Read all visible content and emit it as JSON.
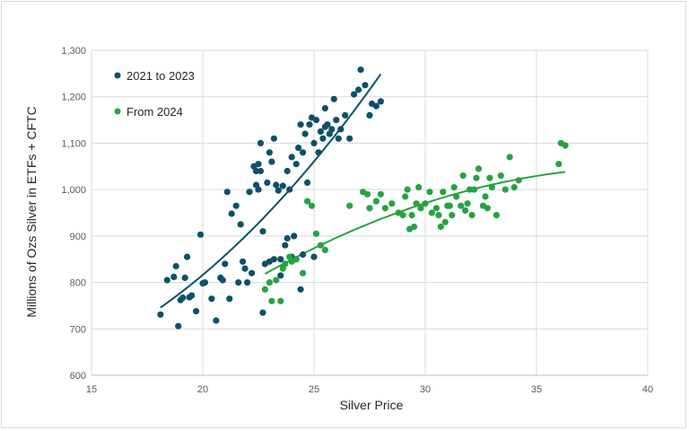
{
  "chart_data": {
    "type": "scatter",
    "title": "",
    "xlabel": "Silver Price",
    "ylabel": "Millions of Ozs Silver in ETFs + CFTC",
    "xlim": [
      15,
      40
    ],
    "ylim": [
      600,
      1300
    ],
    "x_ticks": [
      "15",
      "20",
      "25",
      "30",
      "35",
      "40"
    ],
    "y_ticks": [
      "600",
      "700",
      "800",
      "900",
      "1,000",
      "1,100",
      "1,200",
      "1,300"
    ],
    "grid": "vertical and horizontal",
    "legend_position": "top-left",
    "series": [
      {
        "name": "2021 to 2023",
        "color": "#0d5068",
        "trendline": "polynomial",
        "points": [
          [
            18.1,
            731
          ],
          [
            18.4,
            805
          ],
          [
            18.7,
            812
          ],
          [
            18.8,
            835
          ],
          [
            18.9,
            706
          ],
          [
            19.0,
            762
          ],
          [
            19.1,
            767
          ],
          [
            19.2,
            810
          ],
          [
            19.3,
            855
          ],
          [
            19.4,
            768
          ],
          [
            19.5,
            772
          ],
          [
            19.7,
            738
          ],
          [
            19.9,
            903
          ],
          [
            20.0,
            798
          ],
          [
            20.1,
            800
          ],
          [
            20.4,
            765
          ],
          [
            20.6,
            718
          ],
          [
            20.8,
            810
          ],
          [
            20.9,
            805
          ],
          [
            21.0,
            840
          ],
          [
            21.1,
            995
          ],
          [
            21.2,
            765
          ],
          [
            21.3,
            948
          ],
          [
            21.5,
            965
          ],
          [
            21.6,
            800
          ],
          [
            21.7,
            925
          ],
          [
            21.8,
            845
          ],
          [
            21.9,
            830
          ],
          [
            22.0,
            800
          ],
          [
            22.1,
            995
          ],
          [
            22.2,
            820
          ],
          [
            22.3,
            1050
          ],
          [
            22.4,
            1040
          ],
          [
            22.4,
            1010
          ],
          [
            22.5,
            1055
          ],
          [
            22.5,
            1000
          ],
          [
            22.6,
            1100
          ],
          [
            22.6,
            1040
          ],
          [
            22.7,
            735
          ],
          [
            22.7,
            910
          ],
          [
            22.8,
            840
          ],
          [
            22.9,
            1015
          ],
          [
            23.0,
            845
          ],
          [
            23.0,
            1080
          ],
          [
            23.1,
            1060
          ],
          [
            23.2,
            1110
          ],
          [
            23.2,
            850
          ],
          [
            23.3,
            1010
          ],
          [
            23.4,
            998
          ],
          [
            23.5,
            815
          ],
          [
            23.5,
            850
          ],
          [
            23.6,
            1008
          ],
          [
            23.7,
            880
          ],
          [
            23.8,
            895
          ],
          [
            23.8,
            1040
          ],
          [
            23.9,
            1000
          ],
          [
            24.0,
            855
          ],
          [
            24.0,
            1070
          ],
          [
            24.1,
            900
          ],
          [
            24.2,
            1055
          ],
          [
            24.2,
            850
          ],
          [
            24.3,
            1090
          ],
          [
            24.4,
            1140
          ],
          [
            24.4,
            785
          ],
          [
            24.5,
            860
          ],
          [
            24.5,
            1080
          ],
          [
            24.6,
            1120
          ],
          [
            24.7,
            1015
          ],
          [
            24.8,
            1140
          ],
          [
            24.9,
            1155
          ],
          [
            25.0,
            1100
          ],
          [
            25.0,
            855
          ],
          [
            25.1,
            1150
          ],
          [
            25.2,
            1080
          ],
          [
            25.3,
            1125
          ],
          [
            25.4,
            1110
          ],
          [
            25.5,
            1175
          ],
          [
            25.5,
            1135
          ],
          [
            25.6,
            1140
          ],
          [
            25.7,
            1120
          ],
          [
            25.8,
            1130
          ],
          [
            25.9,
            1195
          ],
          [
            26.0,
            1150
          ],
          [
            26.1,
            1110
          ],
          [
            26.2,
            1130
          ],
          [
            26.4,
            1160
          ],
          [
            26.6,
            1110
          ],
          [
            26.8,
            1205
          ],
          [
            27.0,
            1215
          ],
          [
            27.1,
            1258
          ],
          [
            27.3,
            1225
          ],
          [
            27.5,
            1160
          ],
          [
            27.6,
            1185
          ],
          [
            27.8,
            1180
          ],
          [
            28.0,
            1190
          ]
        ]
      },
      {
        "name": "From 2024",
        "color": "#26a242",
        "trendline": "polynomial",
        "points": [
          [
            22.8,
            785
          ],
          [
            23.0,
            800
          ],
          [
            23.1,
            760
          ],
          [
            23.3,
            805
          ],
          [
            23.5,
            760
          ],
          [
            23.6,
            830
          ],
          [
            23.7,
            840
          ],
          [
            23.9,
            855
          ],
          [
            24.0,
            845
          ],
          [
            24.2,
            850
          ],
          [
            24.5,
            820
          ],
          [
            24.7,
            975
          ],
          [
            24.9,
            965
          ],
          [
            25.1,
            905
          ],
          [
            25.3,
            880
          ],
          [
            25.5,
            870
          ],
          [
            26.6,
            965
          ],
          [
            27.2,
            995
          ],
          [
            27.4,
            990
          ],
          [
            27.5,
            960
          ],
          [
            27.8,
            975
          ],
          [
            28.0,
            990
          ],
          [
            28.2,
            960
          ],
          [
            28.5,
            970
          ],
          [
            28.8,
            950
          ],
          [
            29.0,
            945
          ],
          [
            29.1,
            985
          ],
          [
            29.2,
            1000
          ],
          [
            29.4,
            945
          ],
          [
            29.5,
            920
          ],
          [
            29.6,
            970
          ],
          [
            29.7,
            1005
          ],
          [
            29.8,
            960
          ],
          [
            30.0,
            970
          ],
          [
            30.2,
            995
          ],
          [
            30.3,
            950
          ],
          [
            30.5,
            960
          ],
          [
            30.6,
            945
          ],
          [
            30.8,
            995
          ],
          [
            30.9,
            930
          ],
          [
            31.0,
            965
          ],
          [
            31.2,
            945
          ],
          [
            31.3,
            1005
          ],
          [
            31.4,
            985
          ],
          [
            31.6,
            965
          ],
          [
            31.7,
            1030
          ],
          [
            31.8,
            955
          ],
          [
            31.9,
            970
          ],
          [
            32.0,
            1000
          ],
          [
            32.1,
            945
          ],
          [
            32.3,
            1025
          ],
          [
            32.4,
            1045
          ],
          [
            32.6,
            965
          ],
          [
            32.7,
            985
          ],
          [
            32.8,
            960
          ],
          [
            32.9,
            1025
          ],
          [
            33.0,
            1005
          ],
          [
            33.2,
            945
          ],
          [
            33.4,
            1030
          ],
          [
            33.6,
            1000
          ],
          [
            33.8,
            1070
          ],
          [
            34.0,
            1005
          ],
          [
            34.2,
            1020
          ],
          [
            36.1,
            1100
          ],
          [
            36.3,
            1095
          ],
          [
            36.0,
            1055
          ],
          [
            29.3,
            915
          ],
          [
            30.7,
            920
          ],
          [
            31.1,
            965
          ],
          [
            32.2,
            1000
          ]
        ]
      }
    ]
  }
}
